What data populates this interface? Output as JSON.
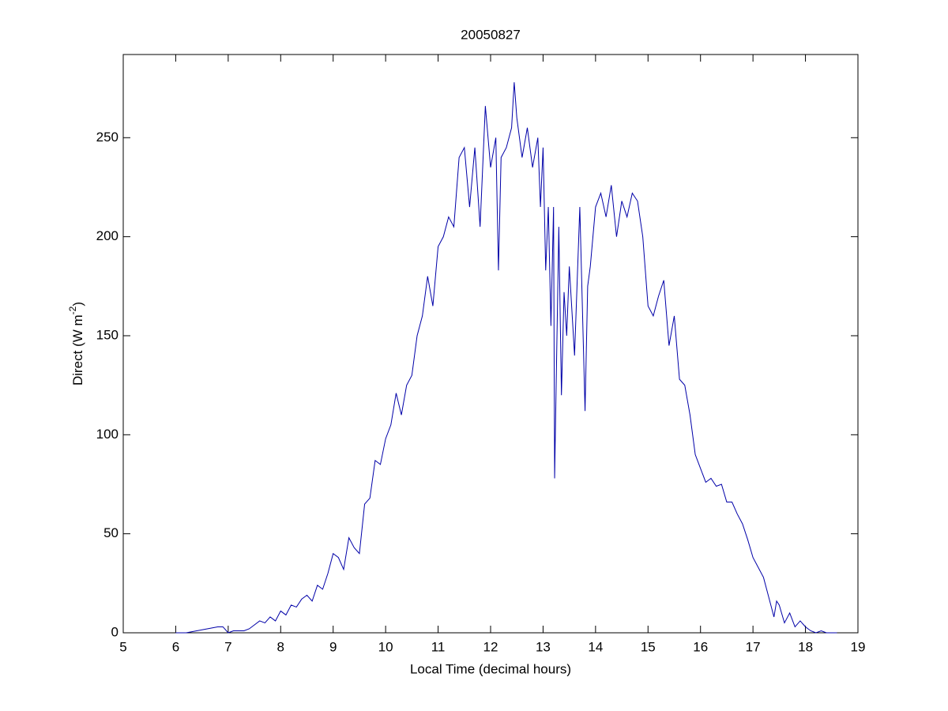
{
  "chart_data": {
    "type": "line",
    "title": "20050827",
    "xlabel": "Local Time (decimal hours)",
    "ylabel": {
      "text": "Direct (W m",
      "superscript": "-2",
      "suffix": ")"
    },
    "xlim": [
      5,
      19
    ],
    "xticks": [
      5,
      6,
      7,
      8,
      9,
      10,
      11,
      12,
      13,
      14,
      15,
      16,
      17,
      18,
      19
    ],
    "ylim": [
      0,
      292
    ],
    "yticks": [
      0,
      50,
      100,
      150,
      200,
      250
    ],
    "grid": false,
    "series": [
      {
        "color": "#0000a8",
        "x": [
          6.0,
          6.1,
          6.2,
          6.3,
          6.4,
          6.5,
          6.6,
          6.7,
          6.8,
          6.9,
          7.0,
          7.1,
          7.2,
          7.3,
          7.4,
          7.5,
          7.6,
          7.7,
          7.8,
          7.9,
          8.0,
          8.1,
          8.2,
          8.3,
          8.4,
          8.5,
          8.6,
          8.7,
          8.8,
          8.9,
          9.0,
          9.1,
          9.2,
          9.3,
          9.4,
          9.5,
          9.6,
          9.7,
          9.8,
          9.9,
          10.0,
          10.1,
          10.2,
          10.3,
          10.4,
          10.5,
          10.6,
          10.7,
          10.8,
          10.9,
          11.0,
          11.1,
          11.2,
          11.3,
          11.4,
          11.5,
          11.6,
          11.7,
          11.8,
          11.9,
          12.0,
          12.1,
          12.15,
          12.2,
          12.3,
          12.4,
          12.45,
          12.5,
          12.6,
          12.7,
          12.8,
          12.9,
          12.95,
          13.0,
          13.05,
          13.1,
          13.15,
          13.2,
          13.22,
          13.3,
          13.35,
          13.4,
          13.45,
          13.5,
          13.6,
          13.7,
          13.8,
          13.85,
          13.9,
          14.0,
          14.1,
          14.2,
          14.3,
          14.4,
          14.5,
          14.6,
          14.7,
          14.8,
          14.9,
          15.0,
          15.1,
          15.2,
          15.3,
          15.4,
          15.5,
          15.6,
          15.7,
          15.8,
          15.9,
          16.0,
          16.1,
          16.2,
          16.3,
          16.4,
          16.5,
          16.6,
          16.7,
          16.8,
          16.9,
          17.0,
          17.1,
          17.2,
          17.3,
          17.4,
          17.45,
          17.5,
          17.6,
          17.7,
          17.8,
          17.9,
          18.0,
          18.1,
          18.2,
          18.3,
          18.4,
          18.5,
          18.6
        ],
        "values": [
          0,
          0,
          0,
          0.5,
          1,
          1.5,
          2,
          2.5,
          3,
          3,
          0,
          1,
          1,
          1,
          2,
          4,
          6,
          5,
          8,
          6,
          11,
          9,
          14,
          13,
          17,
          19,
          16,
          24,
          22,
          30,
          40,
          38,
          32,
          48,
          43,
          40,
          65,
          68,
          87,
          85,
          98,
          105,
          121,
          110,
          125,
          130,
          150,
          160,
          180,
          165,
          195,
          200,
          210,
          205,
          240,
          245,
          215,
          245,
          205,
          266,
          235,
          250,
          183,
          240,
          245,
          255,
          278,
          260,
          240,
          255,
          235,
          250,
          215,
          245,
          183,
          215,
          155,
          215,
          78,
          205,
          120,
          172,
          150,
          185,
          140,
          215,
          112,
          175,
          185,
          215,
          222,
          210,
          226,
          200,
          218,
          210,
          222,
          218,
          200,
          165,
          160,
          170,
          178,
          145,
          160,
          128,
          125,
          110,
          90,
          83,
          76,
          78,
          74,
          75,
          66,
          66,
          60,
          55,
          47,
          38,
          33,
          28,
          18,
          8,
          16,
          14,
          5,
          10,
          3,
          6,
          3,
          1,
          0,
          1,
          0,
          0,
          0
        ]
      }
    ]
  }
}
